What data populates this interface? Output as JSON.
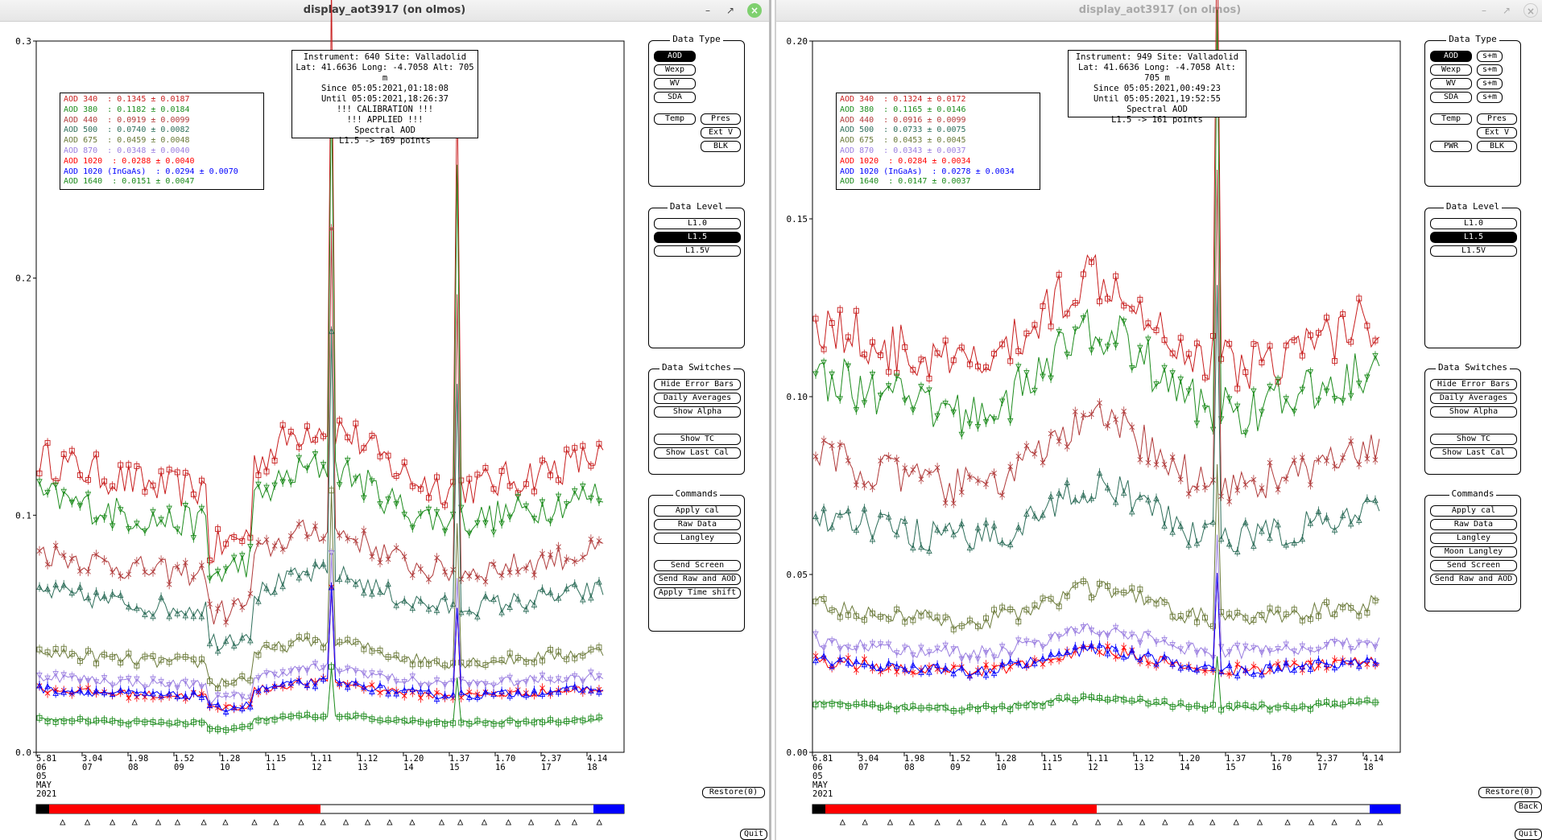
{
  "colors": {
    "aod340": "#c81e1e",
    "aod380": "#1e8c1e",
    "aod440": "#b03a3a",
    "aod500": "#2e6e5a",
    "aod675": "#6b7a3a",
    "aod870": "#9a7ee0",
    "aod1020": "#ff0000",
    "aod1020ingaas": "#0000ff",
    "aod1640": "#1a8a1a"
  },
  "left": {
    "title": "display_aot3917 (on olmos)",
    "window_buttons": {
      "minimize": "–",
      "maximize": "↗",
      "close": "×"
    },
    "info": [
      "Instrument: 640 Site: Valladolid",
      "Lat: 41.6636 Long: -4.7058 Alt: 705 m",
      "Since 05:05:2021,01:18:08",
      "Until 05:05:2021,18:26:37",
      "!!! CALIBRATION !!!",
      "!!!   APPLIED   !!!",
      "Spectral AOD",
      "L1.5 -> 169 points"
    ],
    "legend": [
      {
        "text": "AOD 340  : 0.1345 ± 0.0187",
        "color": "#c81e1e"
      },
      {
        "text": "AOD 380  : 0.1182 ± 0.0184",
        "color": "#1e8c1e"
      },
      {
        "text": "AOD 440  : 0.0919 ± 0.0099",
        "color": "#b03a3a"
      },
      {
        "text": "AOD 500  : 0.0740 ± 0.0082",
        "color": "#2e6e5a"
      },
      {
        "text": "AOD 675  : 0.0459 ± 0.0048",
        "color": "#6b7a3a"
      },
      {
        "text": "AOD 870  : 0.0348 ± 0.0040",
        "color": "#9a7ee0"
      },
      {
        "text": "AOD 1020  : 0.0288 ± 0.0040",
        "color": "#ff0000"
      },
      {
        "text": "AOD 1020 (InGaAs)  : 0.0294 ± 0.0070",
        "color": "#0000ff"
      },
      {
        "text": "AOD 1640  : 0.0151 ± 0.0047",
        "color": "#1a8a1a"
      }
    ],
    "yticks": [
      "0.0",
      "0.1",
      "0.2",
      "0.3"
    ],
    "xticks": [
      [
        "5.81",
        "06"
      ],
      [
        "3.04",
        "07"
      ],
      [
        "1.98",
        "08"
      ],
      [
        "1.52",
        "09"
      ],
      [
        "1.28",
        "10"
      ],
      [
        "1.15",
        "11"
      ],
      [
        "1.11",
        "12"
      ],
      [
        "1.12",
        "13"
      ],
      [
        "1.20",
        "14"
      ],
      [
        "1.37",
        "15"
      ],
      [
        "1.70",
        "16"
      ],
      [
        "2.37",
        "17"
      ],
      [
        "4.14",
        "18"
      ]
    ],
    "date": [
      "05",
      "MAY",
      "2021"
    ],
    "data_type": {
      "title": "Data Type",
      "buttons": [
        "AOD",
        "Wexp",
        "WV",
        "SDA"
      ],
      "selected": "AOD",
      "temp": "Temp",
      "pres": "Pres",
      "extv": "Ext V",
      "blk": "BLK"
    },
    "data_level": {
      "title": "Data Level",
      "buttons": [
        "L1.0",
        "L1.5",
        "L1.5V"
      ],
      "selected": "L1.5"
    },
    "data_switches": {
      "title": "Data Switches",
      "buttons": [
        "Hide Error Bars",
        "Daily Averages",
        "Show Alpha",
        "Show TC",
        "Show Last Cal"
      ]
    },
    "commands": {
      "title": "Commands",
      "buttons": [
        "Apply cal",
        "Raw Data",
        "Langley",
        "Send Screen",
        "Send Raw and AOD",
        "Apply Time shift"
      ]
    },
    "restore": "Restore(0)",
    "quit": "Quit"
  },
  "right": {
    "title": "display_aot3917 (on olmos)",
    "window_buttons": {
      "minimize": "–",
      "maximize": "↗",
      "close": "×"
    },
    "info": [
      "Instrument: 949 Site: Valladolid",
      "Lat: 41.6636 Long: -4.7058 Alt: 705 m",
      "Since 05:05:2021,00:49:23",
      "Until 05:05:2021,19:52:55",
      "Spectral AOD",
      "L1.5 -> 161 points"
    ],
    "legend": [
      {
        "text": "AOD 340  : 0.1324 ± 0.0172",
        "color": "#c81e1e"
      },
      {
        "text": "AOD 380  : 0.1165 ± 0.0146",
        "color": "#1e8c1e"
      },
      {
        "text": "AOD 440  : 0.0916 ± 0.0099",
        "color": "#b03a3a"
      },
      {
        "text": "AOD 500  : 0.0733 ± 0.0075",
        "color": "#2e6e5a"
      },
      {
        "text": "AOD 675  : 0.0453 ± 0.0045",
        "color": "#6b7a3a"
      },
      {
        "text": "AOD 870  : 0.0343 ± 0.0037",
        "color": "#9a7ee0"
      },
      {
        "text": "AOD 1020  : 0.0284 ± 0.0034",
        "color": "#ff0000"
      },
      {
        "text": "AOD 1020 (InGaAs)  : 0.0278 ± 0.0034",
        "color": "#0000ff"
      },
      {
        "text": "AOD 1640  : 0.0147 ± 0.0037",
        "color": "#1a8a1a"
      }
    ],
    "yticks": [
      "0.00",
      "0.05",
      "0.10",
      "0.15",
      "0.20"
    ],
    "xticks": [
      [
        "6.81",
        "06"
      ],
      [
        "3.04",
        "07"
      ],
      [
        "1.98",
        "08"
      ],
      [
        "1.52",
        "09"
      ],
      [
        "1.28",
        "10"
      ],
      [
        "1.15",
        "11"
      ],
      [
        "1.11",
        "12"
      ],
      [
        "1.12",
        "13"
      ],
      [
        "1.20",
        "14"
      ],
      [
        "1.37",
        "15"
      ],
      [
        "1.70",
        "16"
      ],
      [
        "2.37",
        "17"
      ],
      [
        "4.14",
        "18"
      ]
    ],
    "date": [
      "05",
      "MAY",
      "2021"
    ],
    "data_type": {
      "title": "Data Type",
      "buttons": [
        "AOD",
        "Wexp",
        "WV",
        "SDA"
      ],
      "selected": "AOD",
      "sm": "s+m",
      "temp": "Temp",
      "pres": "Pres",
      "extv": "Ext V",
      "pwr": "PWR",
      "blk": "BLK"
    },
    "data_level": {
      "title": "Data Level",
      "buttons": [
        "L1.0",
        "L1.5",
        "L1.5V"
      ],
      "selected": "L1.5"
    },
    "data_switches": {
      "title": "Data Switches",
      "buttons": [
        "Hide Error Bars",
        "Daily Averages",
        "Show Alpha",
        "Show TC",
        "Show Last Cal"
      ]
    },
    "commands": {
      "title": "Commands",
      "buttons": [
        "Apply cal",
        "Raw Data",
        "Langley",
        "Moon Langley",
        "Send Screen",
        "Send Raw and AOD"
      ]
    },
    "restore": "Restore(0)",
    "back": "Back",
    "quit": "Quit"
  }
}
